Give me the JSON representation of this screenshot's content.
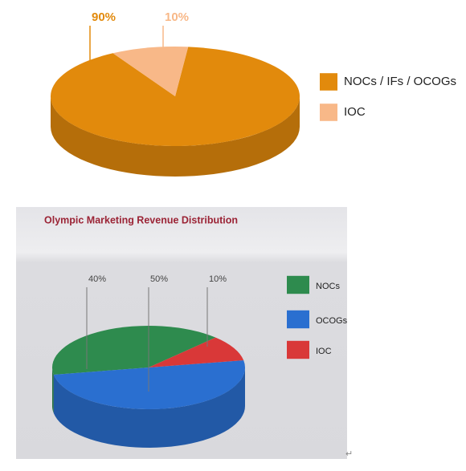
{
  "chart_data": [
    {
      "type": "pie3d",
      "categories": [
        "NOCs / IFs / OCOGs",
        "IOC"
      ],
      "values": [
        90,
        10
      ],
      "value_labels": [
        "90%",
        "10%"
      ],
      "colors": [
        "#e28a0c",
        "#f8b888"
      ]
    },
    {
      "type": "pie3d",
      "title": "Olympic Marketing Revenue Distribution",
      "categories": [
        "NOCs",
        "OCOGs",
        "IOC"
      ],
      "values": [
        40,
        50,
        10
      ],
      "value_labels": [
        "40%",
        "50%",
        "10%"
      ],
      "colors": [
        "#2e8b4e",
        "#2a6fd0",
        "#d93838"
      ]
    }
  ],
  "paragraph_mark": "↵"
}
